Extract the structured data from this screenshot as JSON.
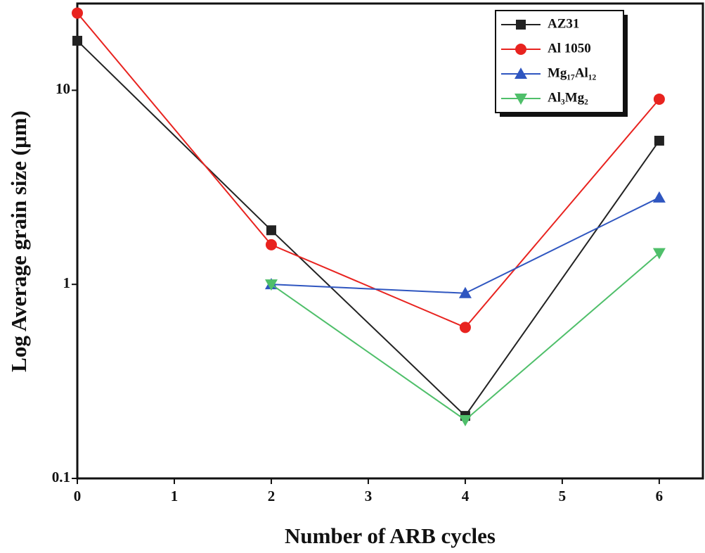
{
  "chart_data": {
    "type": "line",
    "x_label": "Number of ARB cycles",
    "y_label": "Log Average grain size (μm)",
    "x": [
      0,
      2,
      4,
      6
    ],
    "xlim": [
      0,
      6.45
    ],
    "xticks": [
      0,
      1,
      2,
      3,
      4,
      5,
      6
    ],
    "ylim": [
      0.1,
      28
    ],
    "yticks": [
      0.1,
      1,
      10
    ],
    "log_y": true,
    "legend": "upper right",
    "series": [
      {
        "name": "AZ31",
        "color": "#222222",
        "marker": "square",
        "values": [
          18,
          1.9,
          0.21,
          5.5
        ]
      },
      {
        "name": "Al 1050",
        "color": "#e8231f",
        "marker": "circle",
        "values": [
          25,
          1.6,
          0.6,
          9.0
        ]
      },
      {
        "name": "Mg₁₇Al₁₂",
        "color": "#2f56c0",
        "marker": "triangle-up",
        "values": [
          null,
          1.0,
          0.9,
          2.8
        ]
      },
      {
        "name": "Al₃Mg₂",
        "color": "#4fbf6a",
        "marker": "triangle-down",
        "values": [
          null,
          1.0,
          0.2,
          1.45
        ]
      }
    ]
  }
}
